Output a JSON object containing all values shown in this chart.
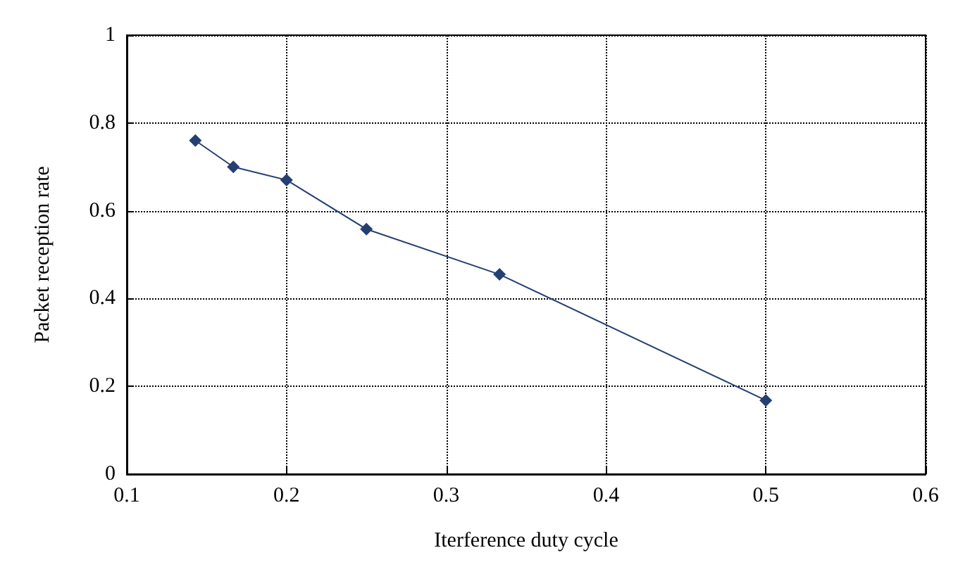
{
  "chart_data": {
    "type": "line",
    "xlabel": "Iterference duty cycle",
    "ylabel": "Packet reception rate",
    "x": [
      0.1429,
      0.1667,
      0.2,
      0.25,
      0.3333,
      0.5
    ],
    "series": [
      {
        "color": "#253f73",
        "values": [
          0.76,
          0.7,
          0.67,
          0.558,
          0.455,
          0.168
        ]
      }
    ],
    "xlim": [
      0.1,
      0.6
    ],
    "xticks": [
      0.1,
      0.2,
      0.3,
      0.4,
      0.5,
      0.6
    ],
    "ylim": [
      0,
      1
    ],
    "yticks": [
      0,
      0.2,
      0.4,
      0.6,
      0.8,
      1
    ],
    "grid": true,
    "marker": "diamond",
    "line_style": "solid"
  }
}
